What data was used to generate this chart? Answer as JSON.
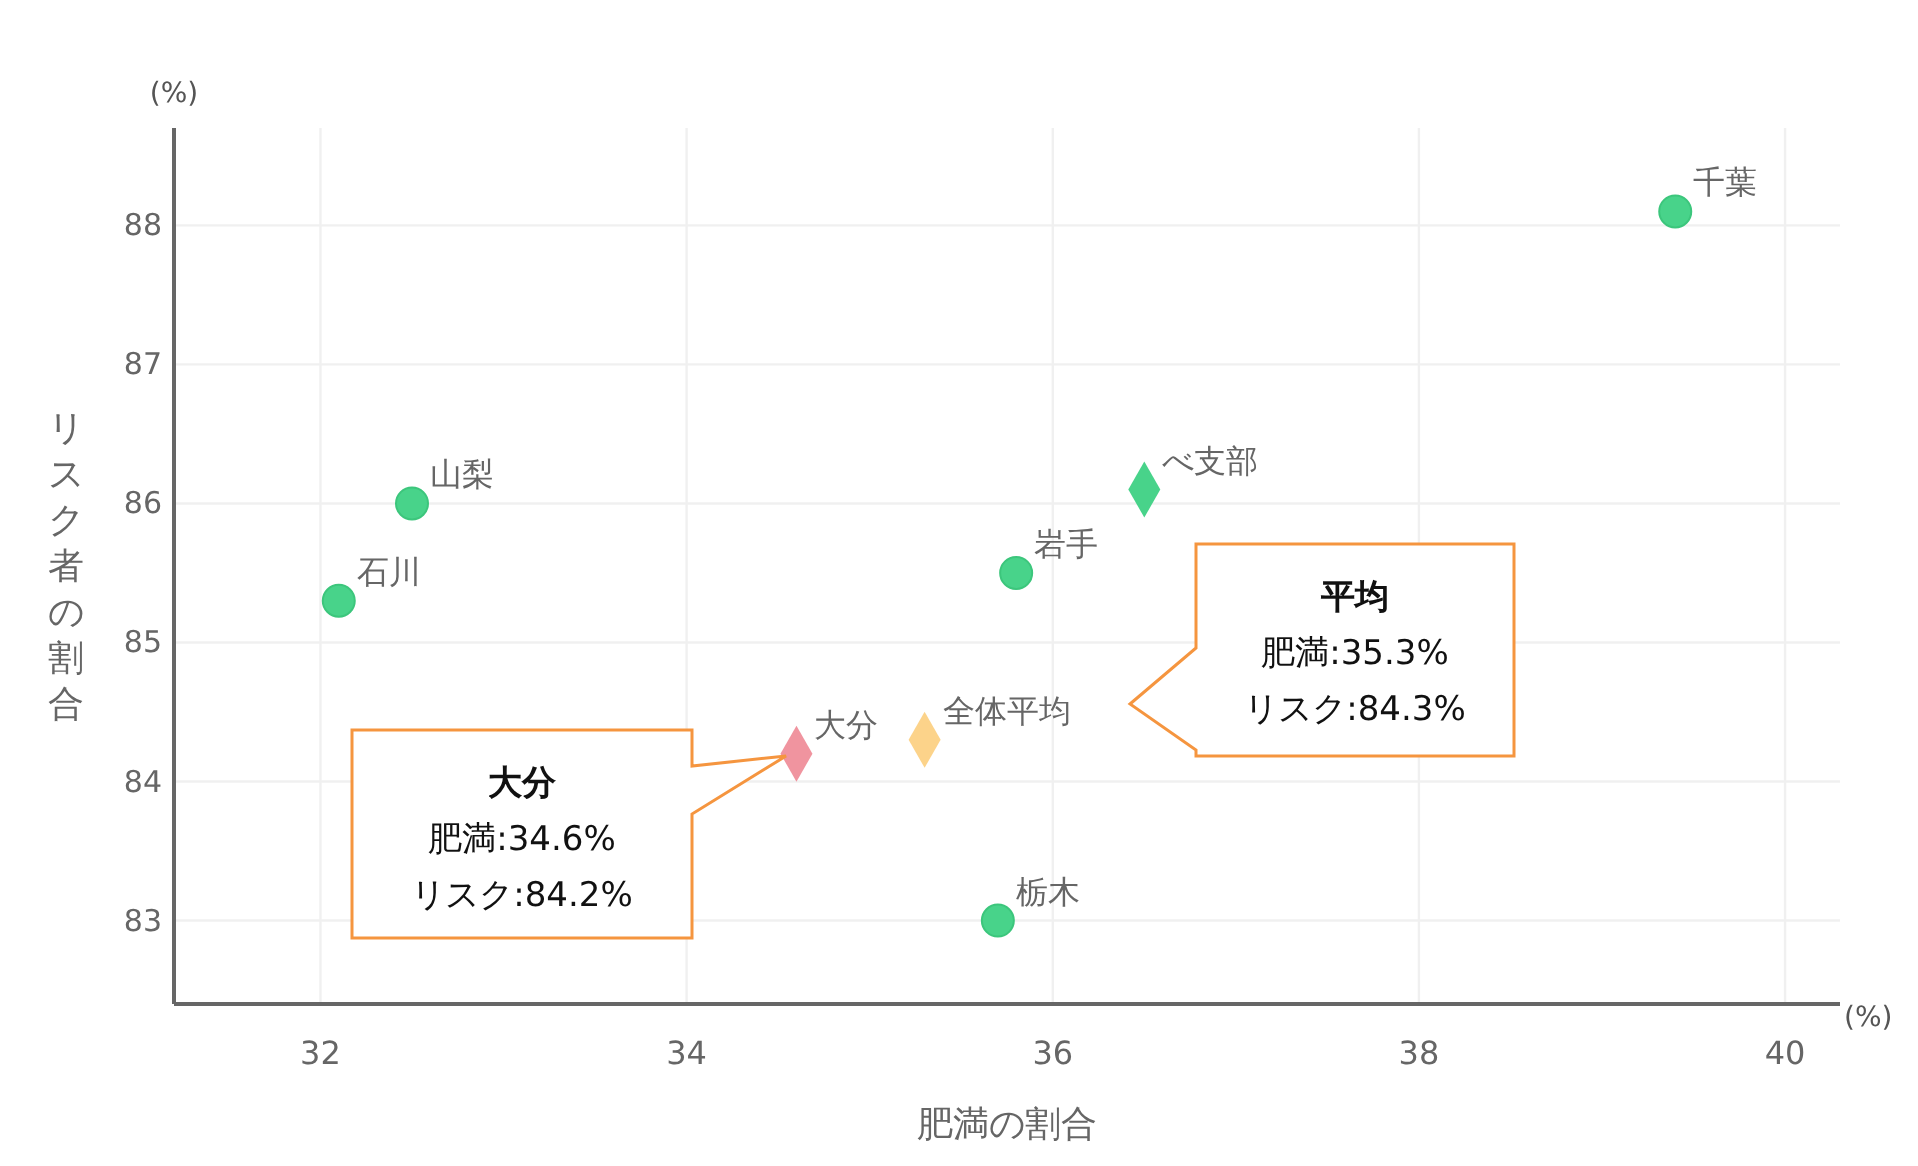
{
  "chart_data": {
    "type": "scatter",
    "xlabel": "肥満の割合",
    "ylabel": "リスク者の割合",
    "xlim": [
      31.2,
      40.3
    ],
    "ylim": [
      82.4,
      88.7
    ],
    "xticks": [
      32,
      34,
      36,
      38,
      40
    ],
    "yticks": [
      83,
      84,
      85,
      86,
      87,
      88
    ],
    "grid": true,
    "series": [
      {
        "marker": "circle",
        "color": "#48d38a",
        "x": [
          39.4,
          32.5,
          32.1,
          35.8,
          35.7
        ],
        "values": [
          88.1,
          86.0,
          85.3,
          85.5,
          83.0
        ]
      },
      {
        "marker": "diamond",
        "color": "#48d38a",
        "x": [
          36.5
        ],
        "values": [
          86.1
        ]
      },
      {
        "marker": "diamond",
        "color": "#f0949f",
        "x": [
          34.6
        ],
        "values": [
          84.2
        ]
      },
      {
        "marker": "diamond",
        "color": "#fcd38a",
        "x": [
          35.3
        ],
        "values": [
          84.3
        ]
      }
    ],
    "annotations": [
      "(%)",
      "(%)",
      {
        "text": "千葉",
        "x": 39.4,
        "y": 88.1
      },
      {
        "text": "山梨",
        "x": 32.5,
        "y": 86.0
      },
      {
        "text": "石川",
        "x": 32.1,
        "y": 85.3
      },
      {
        "text": "べ支部",
        "x": 36.5,
        "y": 86.1
      },
      {
        "text": "岩手",
        "x": 35.8,
        "y": 85.5
      },
      {
        "text": "大分",
        "x": 34.6,
        "y": 84.2
      },
      {
        "text": "全体平均",
        "x": 35.3,
        "y": 84.3
      },
      {
        "text": "栃木",
        "x": 35.7,
        "y": 83.0
      },
      "平均",
      "肥満:35.3%",
      "リスク:84.3%",
      "大分",
      "肥満:34.6%",
      "リスク:84.2%"
    ]
  }
}
